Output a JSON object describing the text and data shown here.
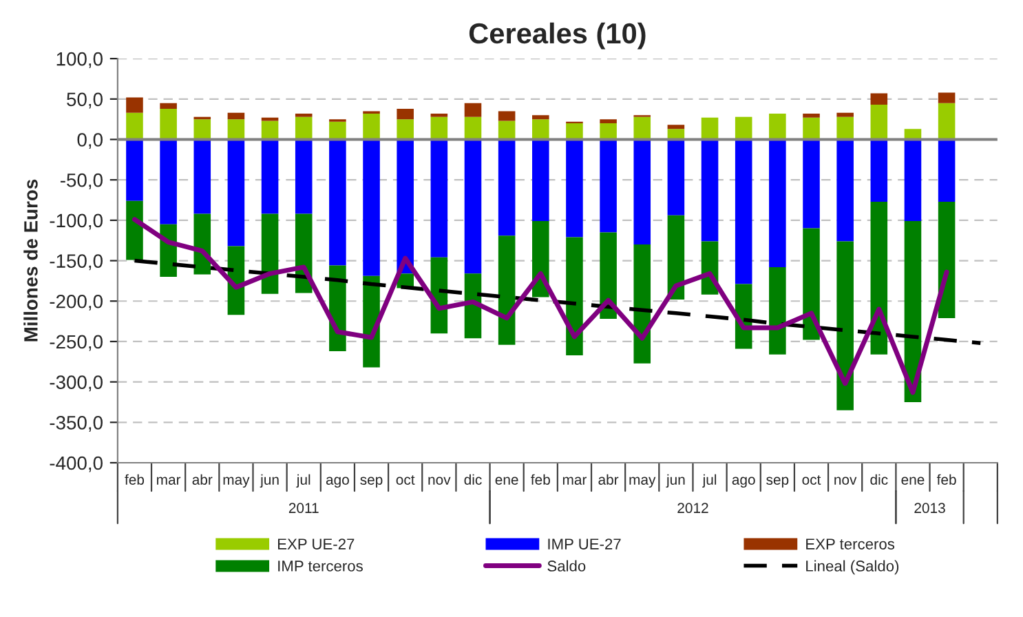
{
  "chart_data": {
    "type": "bar",
    "title": "Cereales (10)",
    "ylabel": "Millones de Euros",
    "stacked": true,
    "categories": [
      "feb",
      "mar",
      "abr",
      "may",
      "jun",
      "jul",
      "ago",
      "sep",
      "oct",
      "nov",
      "dic",
      "ene",
      "feb",
      "mar",
      "abr",
      "may",
      "jun",
      "jul",
      "ago",
      "sep",
      "oct",
      "nov",
      "dic",
      "ene",
      "feb",
      null
    ],
    "series": [
      {
        "name": "EXP UE-27",
        "color": "#99cc00",
        "values": [
          33,
          38,
          25,
          25,
          23,
          28,
          22,
          32,
          25,
          28,
          28,
          23,
          25,
          20,
          20,
          28,
          13,
          27,
          28,
          32,
          27,
          28,
          43,
          13,
          45,
          null
        ]
      },
      {
        "name": "IMP UE-27",
        "color": "#0000ff",
        "values": [
          -76,
          -105,
          -92,
          -132,
          -92,
          -92,
          -156,
          -169,
          -166,
          -146,
          -166,
          -119,
          -101,
          -121,
          -115,
          -130,
          -94,
          -126,
          -179,
          -158,
          -110,
          -126,
          -77,
          -101,
          -77,
          null
        ]
      },
      {
        "name": "EXP terceros",
        "color": "#993300",
        "values": [
          19,
          7,
          3,
          8,
          4,
          4,
          3,
          3,
          13,
          4,
          17,
          12,
          5,
          2,
          5,
          2,
          5,
          null,
          null,
          null,
          5,
          5,
          14,
          null,
          13,
          null
        ]
      },
      {
        "name": "IMP terceros",
        "color": "#008000",
        "values": [
          -73,
          -65,
          -75,
          -85,
          -99,
          -98,
          -106,
          -113,
          -18,
          -94,
          -80,
          -135,
          -94,
          -146,
          -107,
          -147,
          -104,
          -66,
          -80,
          -108,
          -138,
          -209,
          -189,
          -224,
          -144,
          null
        ]
      },
      {
        "name": "Saldo",
        "type": "line",
        "color": "#800080",
        "line_style": "solid",
        "values": [
          -99,
          -127,
          -138,
          -183,
          -166,
          -158,
          -238,
          -245,
          -147,
          -209,
          -201,
          -221,
          -166,
          -244,
          -199,
          -246,
          -181,
          -166,
          -233,
          -233,
          -215,
          -302,
          -210,
          -313,
          -164,
          null
        ]
      },
      {
        "name": "Lineal (Saldo)",
        "type": "line",
        "color": "#000000",
        "line_style": "dashed",
        "values": [
          -150,
          -154,
          -158,
          -162,
          -166,
          -170,
          -174,
          -179,
          -183,
          -187,
          -191,
          -195,
          -199,
          -203,
          -207,
          -211,
          -215,
          -219,
          -223,
          -228,
          -232,
          -236,
          -240,
          -244,
          -248,
          -252
        ]
      }
    ],
    "ylim": [
      -400,
      100
    ],
    "yticks": [
      {
        "value": -400,
        "label": "-400,0"
      },
      {
        "value": -350,
        "label": "-350,0"
      },
      {
        "value": -300,
        "label": "-300,0"
      },
      {
        "value": -250,
        "label": "-250,0"
      },
      {
        "value": -200,
        "label": "-200,0"
      },
      {
        "value": -150,
        "label": "-150,0"
      },
      {
        "value": -100,
        "label": "-100,0"
      },
      {
        "value": -50,
        "label": "-50,0"
      },
      {
        "value": 0,
        "label": "0,0"
      },
      {
        "value": 50,
        "label": "50,0"
      },
      {
        "value": 100,
        "label": "100,0"
      }
    ],
    "grid": "y",
    "legend": "bottom",
    "annotations": [
      "2011",
      "2012",
      "2013"
    ]
  }
}
